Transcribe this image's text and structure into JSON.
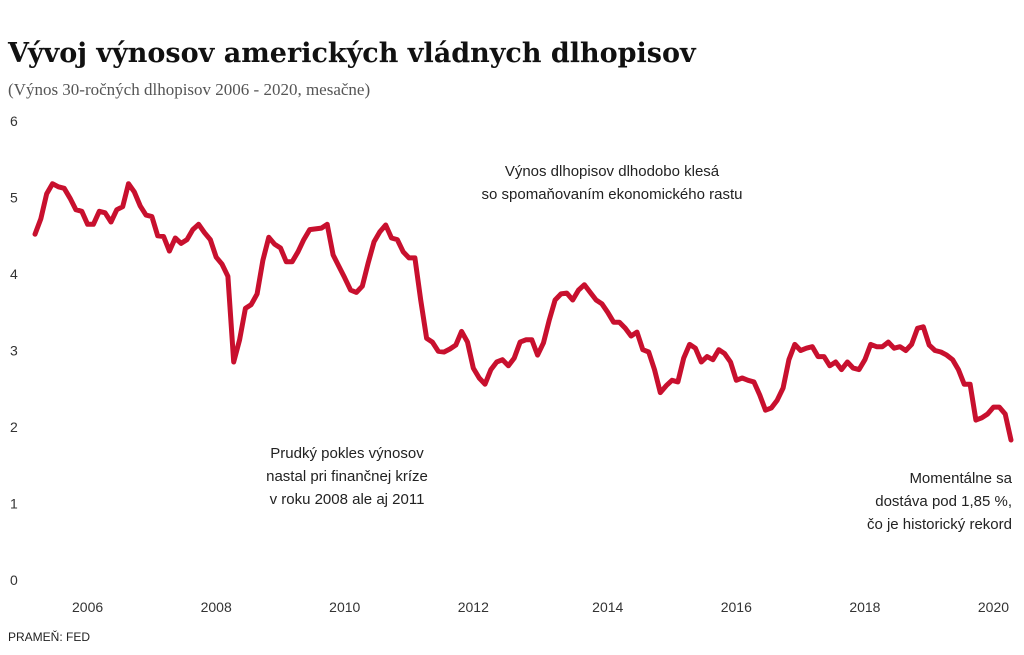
{
  "chart_data": {
    "type": "line",
    "title": "Vývoj výnosov amerických vládnych dlhopisov",
    "subtitle": "(Výnos 30-ročných dlhopisov 2006 - 2020, mesačne)",
    "source": "PRAMEŇ: FED",
    "annotations": [
      [
        "Výnos dlhopisov dlhodobo klesá",
        "so spomaňovaním ekonomického rastu"
      ],
      [
        "Prudký pokles výnosov",
        "nastal pri finančnej kríze",
        "v roku 2008 ale aj 2011"
      ],
      [
        "Momentálne sa",
        "dostáva pod 1,85 %,",
        "čo je historický rekord"
      ]
    ],
    "categories": [
      null,
      null,
      null,
      null,
      null,
      null,
      null,
      null,
      null,
      "2006",
      null,
      null,
      null,
      null,
      null,
      null,
      null,
      null,
      null,
      null,
      null,
      null,
      null,
      null,
      null,
      null,
      null,
      null,
      null,
      null,
      null,
      "2008",
      null,
      null,
      null,
      null,
      null,
      null,
      null,
      null,
      null,
      null,
      null,
      null,
      null,
      null,
      null,
      null,
      null,
      null,
      null,
      null,
      null,
      "2010",
      null,
      null,
      null,
      null,
      null,
      null,
      null,
      null,
      null,
      null,
      null,
      null,
      null,
      null,
      null,
      null,
      null,
      null,
      null,
      null,
      null,
      "2012",
      null,
      null,
      null,
      null,
      null,
      null,
      null,
      null,
      null,
      null,
      null,
      null,
      null,
      null,
      null,
      null,
      null,
      null,
      null,
      null,
      null,
      null,
      "2014",
      null,
      null,
      null,
      null,
      null,
      null,
      null,
      null,
      null,
      null,
      null,
      null,
      null,
      null,
      null,
      null,
      null,
      null,
      null,
      null,
      null,
      "2016",
      null,
      null,
      null,
      null,
      null,
      null,
      null,
      null,
      null,
      null,
      null,
      null,
      null,
      null,
      null,
      null,
      null,
      null,
      null,
      null,
      null,
      "2018",
      null,
      null,
      null,
      null,
      null,
      null,
      null,
      null,
      null,
      null,
      null,
      null,
      null,
      null,
      null,
      null,
      null,
      null,
      null,
      null,
      null,
      "2020",
      null,
      null,
      null
    ],
    "series": [
      {
        "name": "Výnos",
        "color": "#c8102e",
        "values": [
          4.52,
          4.72,
          5.05,
          5.18,
          5.14,
          5.12,
          4.99,
          4.84,
          4.82,
          4.65,
          4.65,
          4.82,
          4.8,
          4.68,
          4.84,
          4.88,
          5.18,
          5.07,
          4.89,
          4.77,
          4.75,
          4.5,
          4.49,
          4.3,
          4.47,
          4.4,
          4.45,
          4.58,
          4.65,
          4.54,
          4.45,
          4.22,
          4.13,
          3.97,
          2.85,
          3.14,
          3.55,
          3.6,
          3.74,
          4.18,
          4.48,
          4.39,
          4.34,
          4.16,
          4.16,
          4.29,
          4.45,
          4.58,
          4.59,
          4.6,
          4.65,
          4.25,
          4.1,
          3.95,
          3.79,
          3.76,
          3.84,
          4.14,
          4.42,
          4.55,
          4.64,
          4.47,
          4.45,
          4.29,
          4.21,
          4.21,
          3.66,
          3.16,
          3.11,
          2.99,
          2.98,
          3.02,
          3.07,
          3.25,
          3.11,
          2.77,
          2.64,
          2.56,
          2.75,
          2.85,
          2.88,
          2.8,
          2.9,
          3.11,
          3.14,
          3.14,
          2.94,
          3.1,
          3.4,
          3.66,
          3.74,
          3.75,
          3.66,
          3.79,
          3.86,
          3.76,
          3.66,
          3.61,
          3.5,
          3.37,
          3.37,
          3.29,
          3.19,
          3.24,
          3.01,
          2.98,
          2.75,
          2.45,
          2.54,
          2.61,
          2.59,
          2.9,
          3.08,
          3.03,
          2.85,
          2.92,
          2.88,
          3.01,
          2.96,
          2.85,
          2.61,
          2.64,
          2.61,
          2.59,
          2.42,
          2.22,
          2.25,
          2.35,
          2.51,
          2.88,
          3.08,
          3.0,
          3.03,
          3.05,
          2.92,
          2.92,
          2.8,
          2.85,
          2.75,
          2.85,
          2.77,
          2.75,
          2.88,
          3.08,
          3.05,
          3.05,
          3.11,
          3.03,
          3.05,
          3.0,
          3.08,
          3.29,
          3.31,
          3.07,
          3.0,
          2.98,
          2.94,
          2.88,
          2.75,
          2.56,
          2.56,
          2.09,
          2.12,
          2.17,
          2.26,
          2.26,
          2.17,
          1.83
        ]
      }
    ],
    "ylim": [
      0,
      6
    ],
    "yticks": [
      0,
      1,
      2,
      3,
      4,
      5,
      6
    ],
    "grid": false
  }
}
